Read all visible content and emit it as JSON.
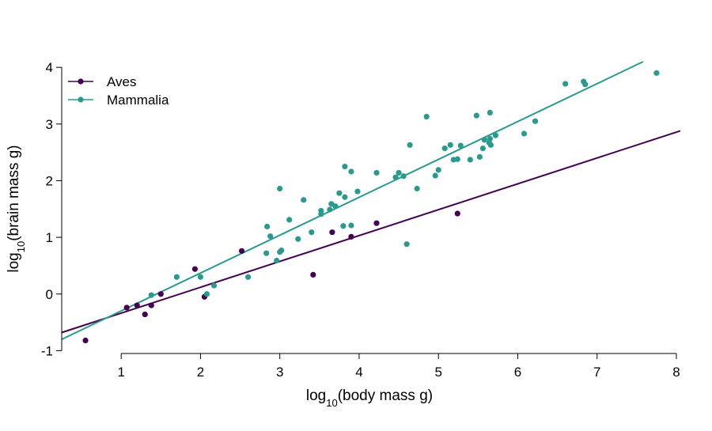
{
  "chart_data": {
    "type": "scatter",
    "xlabel": {
      "prefix": "log",
      "sub": "10",
      "suffix": "(body mass g)"
    },
    "ylabel": {
      "prefix": "log",
      "sub": "10",
      "suffix": "(brain mass g)"
    },
    "xlim": [
      0.25,
      8.05
    ],
    "ylim": [
      -1.05,
      4.1
    ],
    "x_ticks": [
      1,
      2,
      3,
      4,
      5,
      6,
      7,
      8
    ],
    "y_ticks": [
      -1,
      0,
      1,
      2,
      3,
      4
    ],
    "grid": false,
    "legend_position": "top-left",
    "series": [
      {
        "name": "Aves",
        "color": "#440154",
        "points": [
          [
            0.55,
            -0.82
          ],
          [
            1.07,
            -0.24
          ],
          [
            1.2,
            -0.2
          ],
          [
            1.3,
            -0.36
          ],
          [
            1.38,
            -0.2
          ],
          [
            1.5,
            0.0
          ],
          [
            1.93,
            0.44
          ],
          [
            2.05,
            -0.05
          ],
          [
            2.52,
            0.76
          ],
          [
            3.42,
            0.34
          ],
          [
            3.66,
            1.09
          ],
          [
            3.9,
            1.01
          ],
          [
            4.22,
            1.25
          ],
          [
            5.24,
            1.42
          ]
        ],
        "fit": {
          "from": [
            0.25,
            -0.68
          ],
          "to": [
            8.05,
            2.88
          ]
        }
      },
      {
        "name": "Mammalia",
        "color": "#2a9a8e",
        "points": [
          [
            1.38,
            -0.02
          ],
          [
            1.7,
            0.3
          ],
          [
            2.0,
            0.3
          ],
          [
            2.08,
            0.0
          ],
          [
            2.17,
            0.15
          ],
          [
            2.6,
            0.3
          ],
          [
            2.83,
            0.72
          ],
          [
            2.84,
            1.19
          ],
          [
            2.88,
            1.02
          ],
          [
            2.96,
            0.59
          ],
          [
            3.0,
            0.74
          ],
          [
            3.02,
            0.77
          ],
          [
            3.0,
            1.86
          ],
          [
            3.12,
            1.31
          ],
          [
            3.23,
            0.97
          ],
          [
            3.3,
            1.66
          ],
          [
            3.4,
            1.09
          ],
          [
            3.52,
            1.41
          ],
          [
            3.52,
            1.47
          ],
          [
            3.63,
            1.49
          ],
          [
            3.65,
            1.59
          ],
          [
            3.7,
            1.55
          ],
          [
            3.75,
            1.78
          ],
          [
            3.8,
            1.2
          ],
          [
            3.82,
            1.71
          ],
          [
            3.82,
            2.25
          ],
          [
            3.9,
            1.21
          ],
          [
            3.9,
            2.16
          ],
          [
            3.98,
            1.81
          ],
          [
            4.22,
            2.14
          ],
          [
            4.46,
            2.06
          ],
          [
            4.5,
            2.14
          ],
          [
            4.56,
            2.08
          ],
          [
            4.6,
            0.88
          ],
          [
            4.64,
            2.63
          ],
          [
            4.73,
            1.86
          ],
          [
            4.85,
            3.13
          ],
          [
            4.96,
            2.09
          ],
          [
            5.0,
            2.19
          ],
          [
            5.08,
            2.57
          ],
          [
            5.15,
            2.63
          ],
          [
            5.19,
            2.37
          ],
          [
            5.24,
            2.38
          ],
          [
            5.28,
            2.62
          ],
          [
            5.4,
            2.37
          ],
          [
            5.48,
            3.15
          ],
          [
            5.52,
            2.42
          ],
          [
            5.56,
            2.57
          ],
          [
            5.58,
            2.72
          ],
          [
            5.64,
            2.67
          ],
          [
            5.65,
            3.2
          ],
          [
            5.65,
            2.74
          ],
          [
            5.66,
            2.63
          ],
          [
            5.72,
            2.8
          ],
          [
            6.08,
            2.83
          ],
          [
            6.22,
            3.05
          ],
          [
            6.6,
            3.71
          ],
          [
            6.83,
            3.75
          ],
          [
            6.85,
            3.7
          ],
          [
            7.75,
            3.9
          ]
        ],
        "fit": {
          "from": [
            0.25,
            -0.8
          ],
          "to": [
            7.58,
            4.1
          ]
        }
      }
    ]
  }
}
